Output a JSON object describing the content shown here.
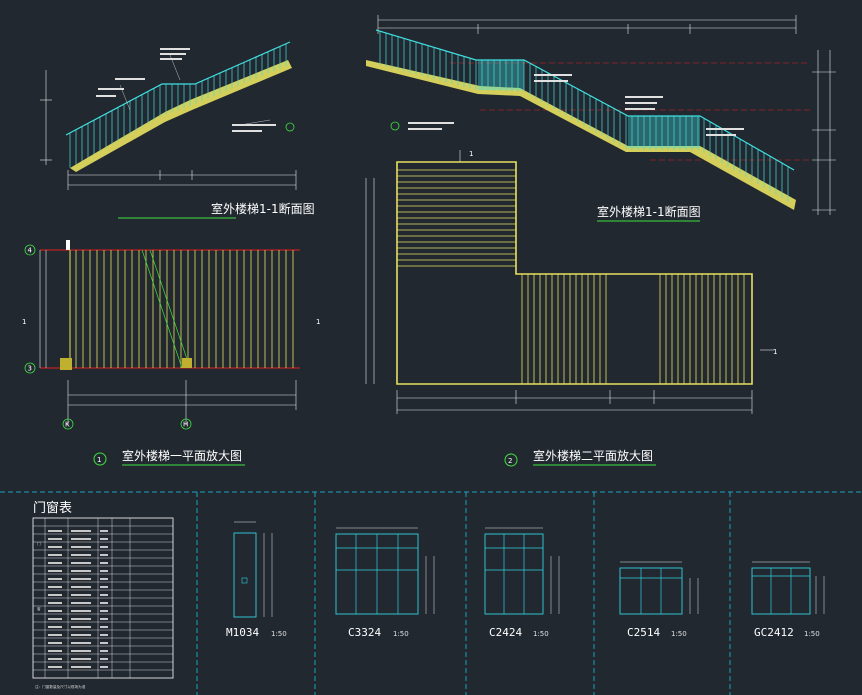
{
  "titles": {
    "section1": "室外楼梯1-1断面图",
    "section2": "室外楼梯1-1断面图",
    "plan1": "室外楼梯一平面放大图",
    "plan2": "室外楼梯二平面放大图",
    "plan1_num": "1",
    "plan2_num": "2"
  },
  "grid": {
    "axis_4": "4",
    "axis_3": "3",
    "axis_K": "K",
    "axis_H": "H",
    "cut_left": "1",
    "cut_right": "1",
    "cut_top": "1",
    "cut_bottom": "1"
  },
  "door_window_table": {
    "title": "门窗表",
    "cat_door": "门",
    "cat_window": "窗",
    "note": "注：门窗数量及尺寸以现场为准"
  },
  "elevations": [
    {
      "id": "M1034",
      "label": "M1034",
      "scale": "1:50"
    },
    {
      "id": "C3324",
      "label": "C3324",
      "scale": "1:50"
    },
    {
      "id": "C2424",
      "label": "C2424",
      "scale": "1:50"
    },
    {
      "id": "C2514",
      "label": "C2514",
      "scale": "1:50"
    },
    {
      "id": "GC2412",
      "label": "GC2412",
      "scale": "1:50"
    }
  ],
  "colors": {
    "background": "#212830",
    "rail": "#40e0e0",
    "stair_yellow": "#e8e060",
    "wall_red": "#e02020",
    "dim_white": "#e8e8e8",
    "divider": "#20a0c0",
    "window_cyan": "#30d0e0",
    "green": "#40e040"
  }
}
